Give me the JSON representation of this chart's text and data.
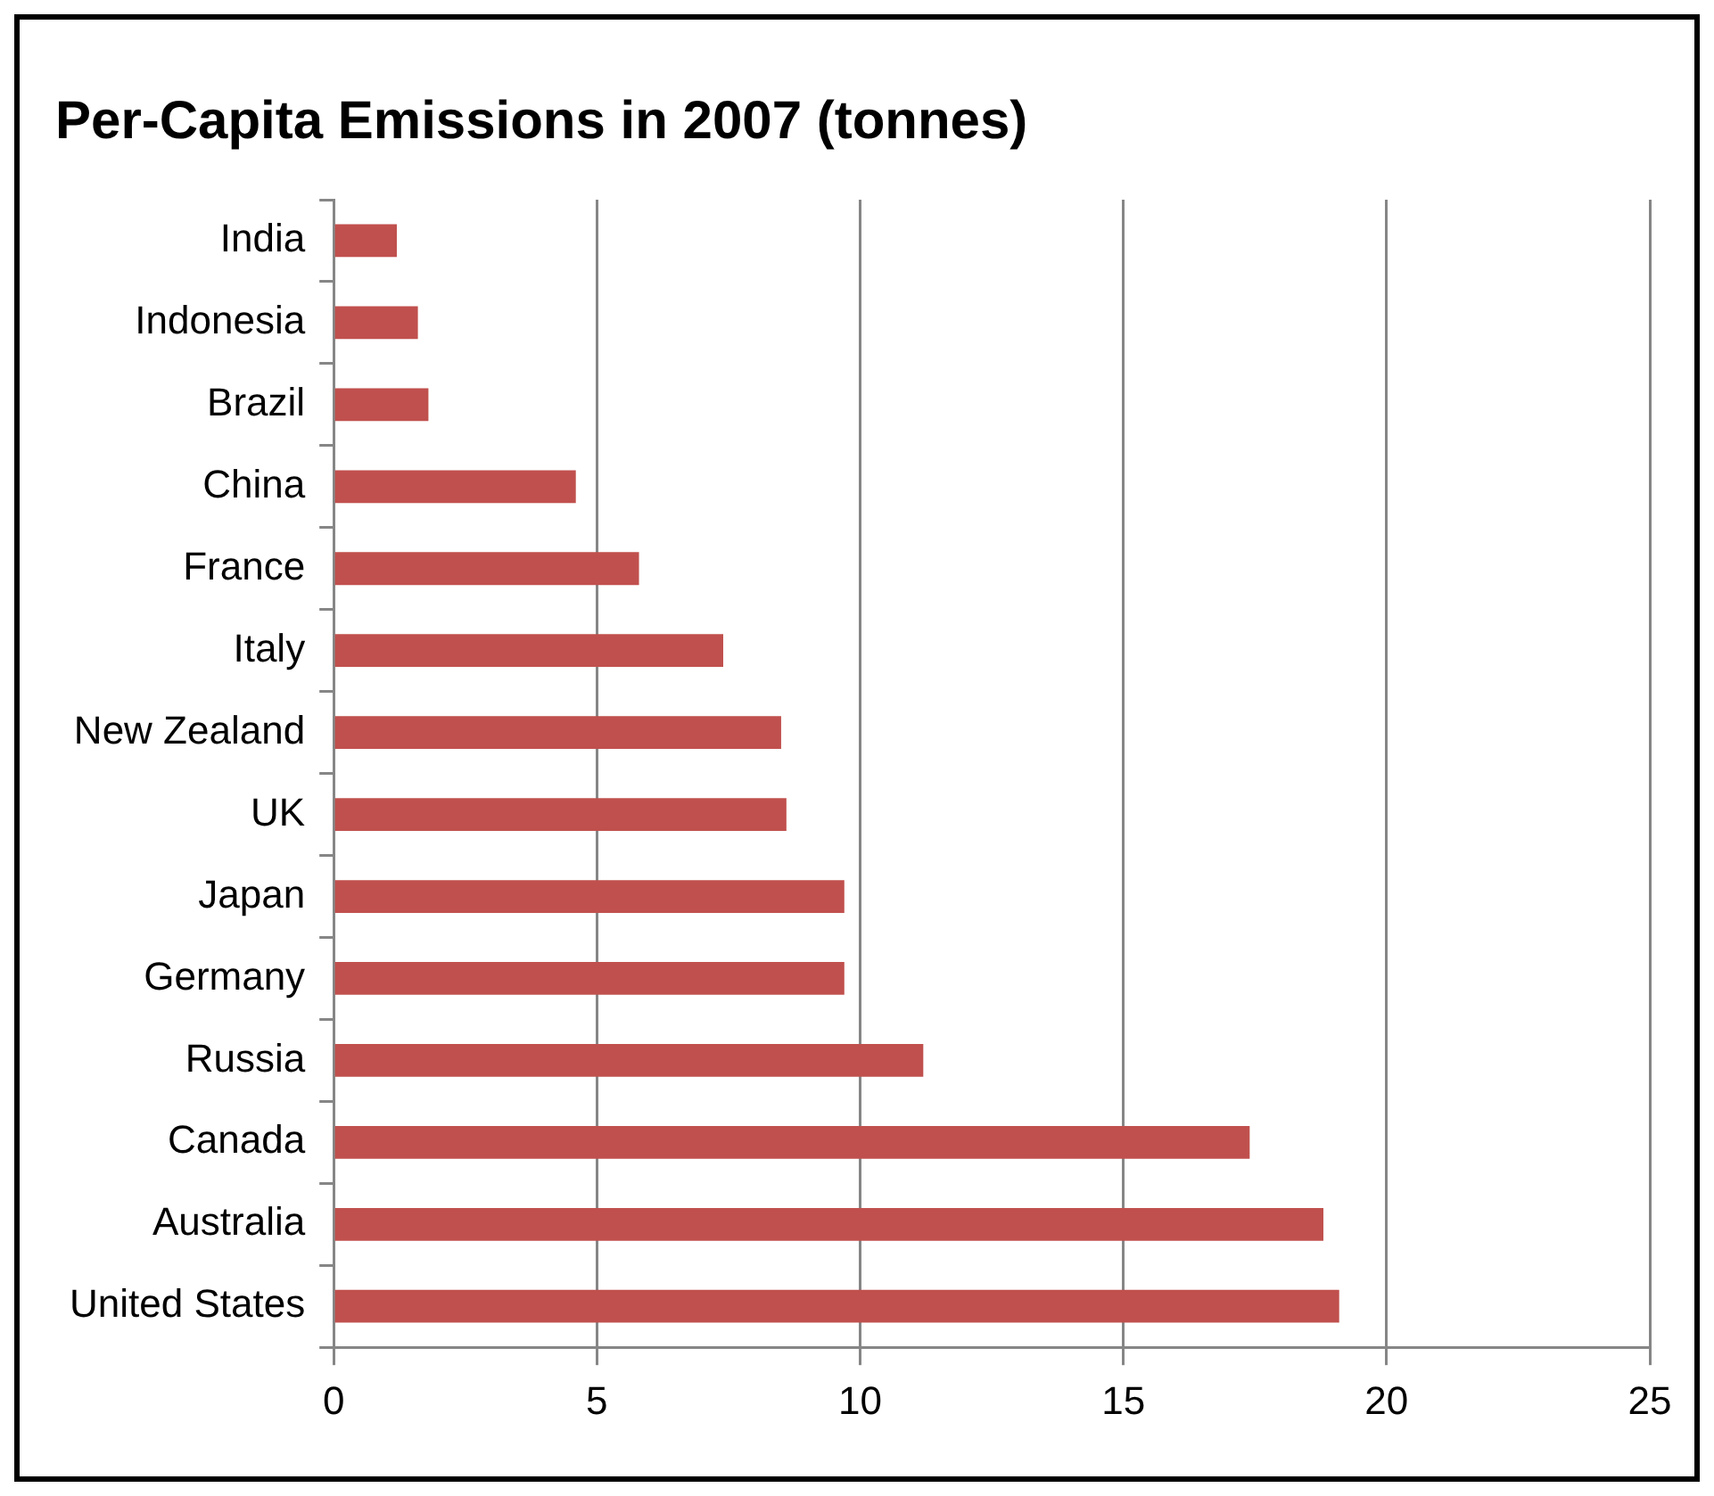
{
  "chart_data": {
    "type": "bar",
    "orientation": "horizontal",
    "title": "Per-Capita Emissions in 2007 (tonnes)",
    "categories": [
      "India",
      "Indonesia",
      "Brazil",
      "China",
      "France",
      "Italy",
      "New Zealand",
      "UK",
      "Japan",
      "Germany",
      "Russia",
      "Canada",
      "Australia",
      "United States"
    ],
    "values": [
      1.2,
      1.6,
      1.8,
      4.6,
      5.8,
      7.4,
      8.5,
      8.6,
      9.7,
      9.7,
      11.2,
      17.4,
      18.8,
      19.1
    ],
    "color": "#c0504d",
    "xlim": [
      0,
      25
    ],
    "xticks": [
      0,
      5,
      10,
      15,
      20,
      25
    ],
    "grid": "x",
    "legend": false
  }
}
